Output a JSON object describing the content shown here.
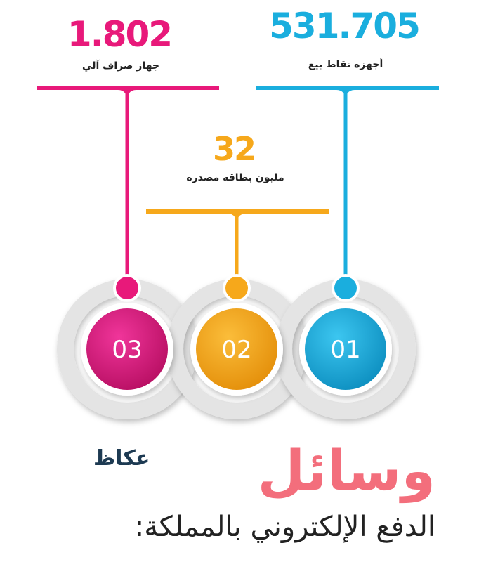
{
  "stats": [
    {
      "number": "531.705",
      "label": "أجهزة نقاط بيع",
      "step": "01",
      "color": "#1aaede"
    },
    {
      "number": "32",
      "label": "مليون بطاقة مصدرة",
      "step": "02",
      "color": "#f6a81b"
    },
    {
      "number": "1.802",
      "label": "جهاز صراف آلي",
      "step": "03",
      "color": "#e8197a"
    }
  ],
  "title": "وسائل",
  "subtitle": "الدفع الإلكتروني بالمملكة:",
  "logo": "عكاظ",
  "colors": {
    "title": "#f36e7c",
    "ring": "#e4e4e4",
    "text": "#222222"
  }
}
